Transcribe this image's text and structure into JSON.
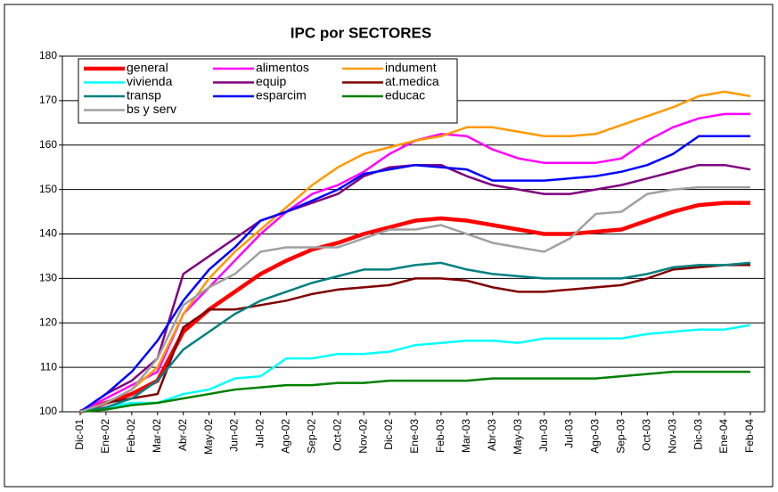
{
  "chart_data": {
    "type": "line",
    "title": "IPC por SECTORES",
    "categories": [
      "Dic-01",
      "Ene-02",
      "Feb-02",
      "Mar-02",
      "Abr-02",
      "May-02",
      "Jun-02",
      "Jul-02",
      "Ago-02",
      "Sep-02",
      "Oct-02",
      "Nov-02",
      "Dic-02",
      "Ene-03",
      "Feb-03",
      "Mar-03",
      "Abr-03",
      "May-03",
      "Jun-03",
      "Jul-03",
      "Ago-03",
      "Sep-03",
      "Oct-03",
      "Nov-03",
      "Dic-03",
      "Ene-04",
      "Feb-04"
    ],
    "ylim": [
      100,
      180
    ],
    "yticks": [
      100,
      110,
      120,
      130,
      140,
      150,
      160,
      170,
      180
    ],
    "grid": true,
    "legend": "upper left",
    "series": [
      {
        "name": "general",
        "color": "#ff0000",
        "values": [
          100,
          102,
          104,
          107,
          118,
          123,
          127,
          131,
          134,
          136.5,
          138,
          140,
          141.5,
          143,
          143.5,
          143,
          142,
          141,
          140,
          140,
          140.5,
          141,
          143,
          145,
          146.5,
          147,
          147
        ]
      },
      {
        "name": "alimentos",
        "color": "#ff00ff",
        "values": [
          100,
          103,
          106,
          109,
          122,
          128,
          134,
          140,
          145,
          149,
          151,
          154,
          158,
          161,
          162.5,
          162,
          159,
          157,
          156,
          156,
          156,
          157,
          161,
          164,
          166,
          167,
          167
        ]
      },
      {
        "name": "indument",
        "color": "#ff9900",
        "values": [
          100,
          102,
          105,
          110,
          122,
          130,
          136,
          141,
          146,
          151,
          155,
          158,
          159.5,
          161,
          162,
          164,
          164,
          163,
          162,
          162,
          162.5,
          164.5,
          166.5,
          168.5,
          171,
          172,
          171
        ]
      },
      {
        "name": "vivienda",
        "color": "#00ffff",
        "values": [
          100,
          101,
          102,
          102,
          104,
          105,
          107.5,
          108,
          112,
          112,
          113,
          113,
          113.5,
          115,
          115.5,
          116,
          116,
          115.5,
          116.5,
          116.5,
          116.5,
          116.5,
          117.5,
          118,
          118.5,
          118.5,
          119.5
        ]
      },
      {
        "name": "equip",
        "color": "#800080",
        "values": [
          100,
          104,
          107,
          112,
          131,
          135,
          139,
          143,
          145,
          147,
          149,
          153,
          155,
          155.5,
          155.5,
          153,
          151,
          150,
          149,
          149,
          150,
          151,
          152.5,
          154,
          155.5,
          155.5,
          154.5
        ]
      },
      {
        "name": "at.medica",
        "color": "#800000",
        "values": [
          100,
          102,
          103,
          104,
          119,
          123,
          123,
          124,
          125,
          126.5,
          127.5,
          128,
          128.5,
          130,
          130,
          129.5,
          128,
          127,
          127,
          127.5,
          128,
          128.5,
          130,
          132,
          132.5,
          133,
          133
        ]
      },
      {
        "name": "transp",
        "color": "#008080",
        "values": [
          100,
          101,
          103,
          107,
          114,
          118,
          122,
          125,
          127,
          129,
          130.5,
          132,
          132,
          133,
          133.5,
          132,
          131,
          130.5,
          130,
          130,
          130,
          130,
          131,
          132.5,
          133,
          133,
          133.5
        ]
      },
      {
        "name": "esparcim",
        "color": "#0000ff",
        "values": [
          100,
          104,
          109,
          116,
          125,
          132,
          137,
          143,
          145,
          147.5,
          150,
          153.5,
          154.5,
          155.5,
          155,
          154.5,
          152,
          152,
          152,
          152.5,
          153,
          154,
          155.5,
          158,
          162,
          162,
          162
        ]
      },
      {
        "name": "educac",
        "color": "#008000",
        "values": [
          100,
          100.5,
          101.5,
          102,
          103,
          104,
          105,
          105.5,
          106,
          106,
          106.5,
          106.5,
          107,
          107,
          107,
          107,
          107.5,
          107.5,
          107.5,
          107.5,
          107.5,
          108,
          108.5,
          109,
          109,
          109,
          109
        ]
      },
      {
        "name": "bs y serv",
        "color": "#a0a0a0",
        "values": [
          100,
          102,
          105,
          112,
          124,
          128,
          131,
          136,
          137,
          137,
          137,
          139,
          141,
          141,
          142,
          140,
          138,
          137,
          136,
          139,
          144.5,
          145,
          149,
          150,
          150.5,
          150.5,
          150.5
        ]
      }
    ]
  }
}
